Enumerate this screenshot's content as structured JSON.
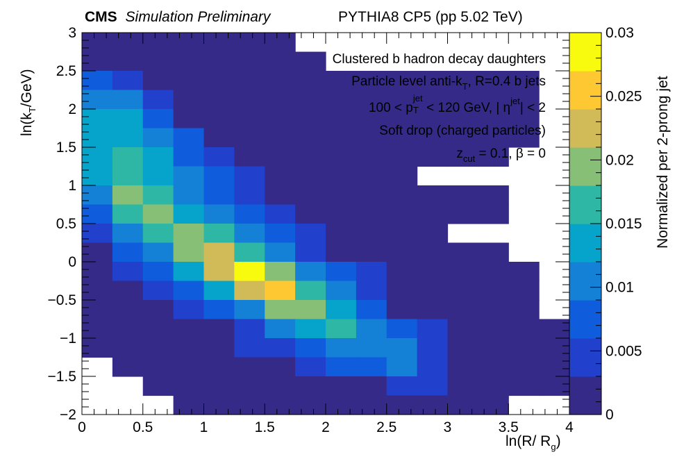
{
  "header": {
    "experiment": "CMS",
    "status": "Simulation Preliminary",
    "generator": "PYTHIA8 CP5 (pp 5.02 TeV)"
  },
  "annotations": {
    "line1": "Clustered b hadron decay daughters",
    "line2_a": "Particle level anti-k",
    "line2_sub": "T",
    "line2_b": ", R=0.4 b jets",
    "line3_a": "100 < p",
    "line3_sub": "T",
    "line3_sup": "jet",
    "line3_b": " < 120 GeV, | η",
    "line3_sup2": "jet",
    "line3_c": "| < 2",
    "line4": "Soft drop (charged particles)",
    "line5_a": "z",
    "line5_sub": "cut",
    "line5_b": " = 0.1,  β = 0"
  },
  "axis_labels": {
    "x_main": "ln(R/ R",
    "x_sub": "g",
    "x_end": ")",
    "y_main": "ln(k",
    "y_sub": "T",
    "y_end": "/GeV)",
    "z": "Normalized per 2-prong jet"
  },
  "chart_data": {
    "type": "heatmap",
    "xlim": [
      0,
      4
    ],
    "ylim": [
      -2,
      3
    ],
    "zlim": [
      0,
      0.03
    ],
    "x_bin_width": 0.25,
    "y_bin_width": 0.25,
    "x_ticks": [
      0,
      0.5,
      1,
      1.5,
      2,
      2.5,
      3,
      3.5,
      4
    ],
    "x_tick_labels": [
      "0",
      "0.5",
      "1",
      "1.5",
      "2",
      "2.5",
      "3",
      "3.5",
      "4"
    ],
    "y_ticks": [
      -2,
      -1.5,
      -1,
      -0.5,
      0,
      0.5,
      1,
      1.5,
      2,
      2.5,
      3
    ],
    "y_tick_labels": [
      "−2",
      "−1.5",
      "−1",
      "−0.5",
      "0",
      "0.5",
      "1",
      "1.5",
      "2",
      "2.5",
      "3"
    ],
    "z_ticks": [
      0,
      0.005,
      0.01,
      0.015,
      0.02,
      0.025,
      0.03
    ],
    "z_tick_labels": [
      "0",
      "0.005",
      "0.01",
      "0.015",
      "0.02",
      "0.025",
      "0.03"
    ],
    "colormap": [
      "#352a87",
      "#2140cc",
      "#0f5cdd",
      "#1481d6",
      "#06a4ca",
      "#2eb7a4",
      "#87bf77",
      "#d1bb59",
      "#fec832",
      "#f9fb0e"
    ],
    "grid": false,
    "rows_top_to_bottom": [
      [
        0.0005,
        0.0005,
        0.0005,
        0.0005,
        0.0005,
        0.0005,
        0.0005,
        null,
        null,
        null,
        null,
        null,
        null,
        null,
        null,
        null
      ],
      [
        0.002,
        0.0005,
        0.0005,
        0.0005,
        0.0005,
        0.0005,
        0.0005,
        0.0005,
        null,
        null,
        null,
        null,
        null,
        null,
        null,
        null
      ],
      [
        0.008,
        0.003,
        0.0005,
        0.0005,
        0.0005,
        0.0005,
        0.0005,
        0.0005,
        0.0005,
        0.0005,
        0.0005,
        0.0005,
        0.0005,
        0.0005,
        0.0005,
        null
      ],
      [
        0.011,
        0.009,
        0.003,
        0.0005,
        0.0005,
        0.0005,
        0.0005,
        0.0005,
        0.0005,
        0.0005,
        0.0005,
        0.0005,
        0.0005,
        0.0005,
        0.0005,
        null
      ],
      [
        0.013,
        0.012,
        0.007,
        0.0025,
        0.0005,
        0.0005,
        0.0005,
        0.0005,
        0.0005,
        0.0005,
        0.0005,
        0.0005,
        0.0005,
        0.0005,
        0.0005,
        null
      ],
      [
        0.014,
        0.014,
        0.01,
        0.006,
        0.0005,
        0.0005,
        0.0005,
        0.0005,
        0.0005,
        0.0005,
        0.0005,
        0.0005,
        0.0005,
        0.0005,
        0.0005,
        null
      ],
      [
        0.014,
        0.016,
        0.012,
        0.008,
        0.003,
        0.0005,
        0.0005,
        0.0005,
        0.0005,
        0.0005,
        0.0005,
        0.0005,
        0.0005,
        0.0005,
        null,
        null
      ],
      [
        0.013,
        0.017,
        0.014,
        0.01,
        0.006,
        0.003,
        0.0005,
        0.0005,
        0.0005,
        0.0005,
        0.0005,
        null,
        null,
        null,
        null,
        null
      ],
      [
        0.011,
        0.019,
        0.015,
        0.011,
        0.008,
        0.005,
        0.0025,
        0.0005,
        0.0005,
        0.0005,
        0.0005,
        0.0005,
        0.0005,
        0.0005,
        null,
        null
      ],
      [
        0.007,
        0.016,
        0.018,
        0.014,
        0.01,
        0.007,
        0.004,
        0.0005,
        0.0005,
        0.0005,
        0.0005,
        0.0005,
        0.0005,
        0.0005,
        null,
        null
      ],
      [
        0.003,
        0.01,
        0.016,
        0.018,
        0.016,
        0.01,
        0.006,
        0.003,
        0.0005,
        0.0005,
        0.0005,
        0.0005,
        null,
        null,
        null,
        null
      ],
      [
        0.0015,
        0.007,
        0.011,
        0.019,
        0.022,
        0.016,
        0.01,
        0.005,
        0.002,
        0.0005,
        0.0005,
        0.0005,
        0.0005,
        0.0005,
        null,
        null
      ],
      [
        0.0005,
        0.004,
        0.007,
        0.013,
        0.022,
        0.027,
        0.018,
        0.01,
        0.006,
        0.003,
        0.0005,
        0.0005,
        0.0005,
        0.0005,
        0.0005,
        null
      ],
      [
        0.0005,
        0.0025,
        0.004,
        0.008,
        0.014,
        0.022,
        0.024,
        0.016,
        0.009,
        0.004,
        0.0005,
        0.0005,
        0.0005,
        0.0005,
        0.0005,
        null
      ],
      [
        0.0005,
        0.0005,
        0.0025,
        0.004,
        0.007,
        0.011,
        0.018,
        0.018,
        0.013,
        0.008,
        0.0025,
        0.0005,
        0.0005,
        0.0005,
        0.0005,
        null
      ],
      [
        0.0005,
        0.0005,
        0.0005,
        0.0005,
        0.0025,
        0.005,
        0.009,
        0.013,
        0.015,
        0.011,
        0.006,
        0.003,
        0.0005,
        0.0005,
        0.0005,
        0.0005
      ],
      [
        0.0005,
        0.0005,
        0.0005,
        0.0005,
        0.0005,
        0.003,
        0.005,
        0.008,
        0.011,
        0.011,
        0.009,
        0.004,
        0.0005,
        0.0005,
        0.0005,
        0.0005
      ],
      [
        null,
        0.0005,
        0.0005,
        0.0005,
        0.0005,
        0.0005,
        0.0025,
        0.004,
        0.006,
        0.008,
        0.01,
        0.004,
        0.0025,
        0.0005,
        0.0005,
        0.0005
      ],
      [
        null,
        null,
        0.0005,
        0.0005,
        0.0005,
        0.0005,
        0.0005,
        0.0005,
        0.0005,
        0.0025,
        0.004,
        0.004,
        0.0025,
        0.0005,
        0.0005,
        0.0005
      ],
      [
        null,
        null,
        null,
        0.0005,
        0.0005,
        0.0005,
        0.0005,
        0.0005,
        0.0005,
        0.0005,
        0.0025,
        0.0025,
        0.0025,
        0.0025,
        null,
        null
      ]
    ]
  }
}
